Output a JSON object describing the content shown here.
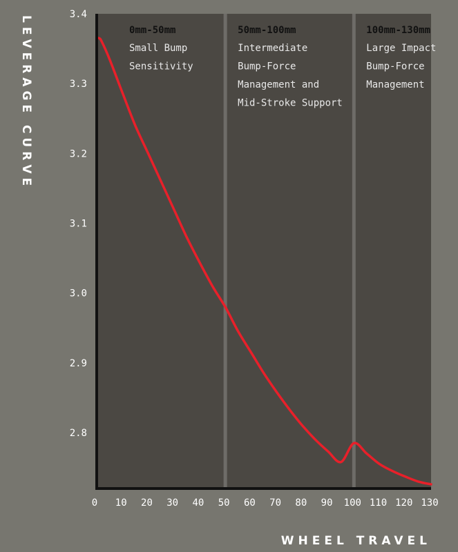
{
  "chart_data": {
    "type": "line",
    "xlabel": "WHEEL TRAVEL",
    "ylabel": "LEVERAGE CURVE",
    "xlim": [
      0,
      130
    ],
    "ylim": [
      2.72,
      3.4
    ],
    "x_ticks": [
      0,
      10,
      20,
      30,
      40,
      50,
      60,
      70,
      80,
      90,
      100,
      110,
      120,
      130
    ],
    "y_ticks": [
      3.4,
      3.3,
      3.2,
      3.1,
      3.0,
      2.9,
      2.8
    ],
    "y_tick_labels": [
      "3.4",
      "3.3",
      "3.2",
      "3.1",
      "3.0",
      "2.9",
      "2.8"
    ],
    "zone_boundaries": [
      50,
      100
    ],
    "zones": [
      {
        "title": "0mm-50mm",
        "lines": [
          "Small Bump",
          "Sensitivity"
        ]
      },
      {
        "title": "50mm-100mm",
        "lines": [
          "Intermediate",
          "Bump-Force",
          "Management and",
          "Mid-Stroke Support"
        ]
      },
      {
        "title": "100mm-130mm",
        "lines": [
          "Large Impact",
          "Bump-Force",
          "Management"
        ]
      }
    ],
    "series": [
      {
        "x": [
          0,
          1,
          2,
          5,
          10,
          15,
          20,
          25,
          30,
          35,
          40,
          45,
          50,
          55,
          60,
          65,
          70,
          75,
          80,
          85,
          90,
          95,
          100,
          105,
          110,
          115,
          120,
          125,
          130
        ],
        "y": [
          3.365,
          3.365,
          3.36,
          3.335,
          3.287,
          3.24,
          3.2,
          3.16,
          3.12,
          3.08,
          3.044,
          3.01,
          2.98,
          2.945,
          2.915,
          2.885,
          2.858,
          2.833,
          2.81,
          2.79,
          2.773,
          2.758,
          2.785,
          2.77,
          2.755,
          2.745,
          2.737,
          2.73,
          2.726
        ],
        "color": "#e8202a"
      }
    ],
    "colors": {
      "background": "#77766f",
      "plot_area": "#4b4843",
      "divider": "#6e6c68",
      "axis": "#111111",
      "curve": "#e8202a"
    }
  }
}
